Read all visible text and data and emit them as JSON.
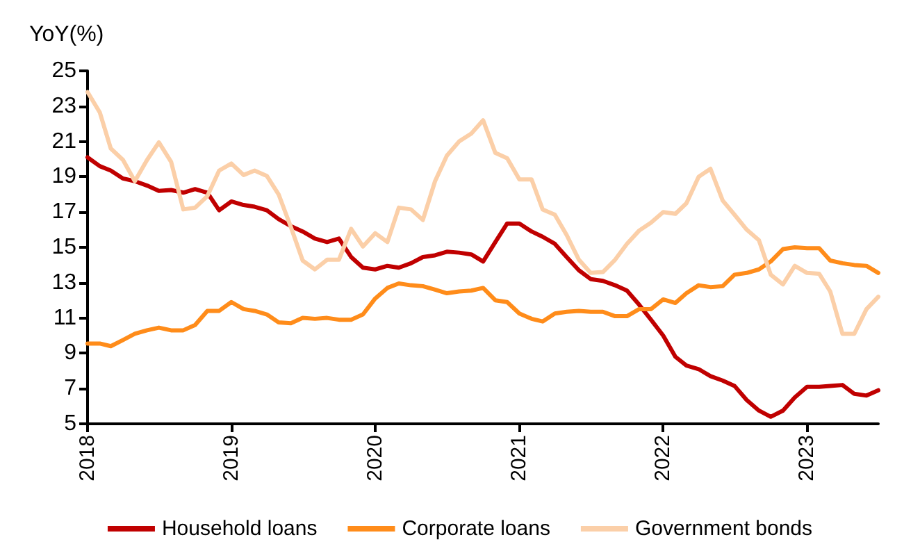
{
  "chart_data": {
    "type": "line",
    "ylabel": "YoY(%)",
    "x": [
      "2018-01",
      "2018-02",
      "2018-03",
      "2018-04",
      "2018-05",
      "2018-06",
      "2018-07",
      "2018-08",
      "2018-09",
      "2018-10",
      "2018-11",
      "2018-12",
      "2019-01",
      "2019-02",
      "2019-03",
      "2019-04",
      "2019-05",
      "2019-06",
      "2019-07",
      "2019-08",
      "2019-09",
      "2019-10",
      "2019-11",
      "2019-12",
      "2020-01",
      "2020-02",
      "2020-03",
      "2020-04",
      "2020-05",
      "2020-06",
      "2020-07",
      "2020-08",
      "2020-09",
      "2020-10",
      "2020-11",
      "2020-12",
      "2021-01",
      "2021-02",
      "2021-03",
      "2021-04",
      "2021-05",
      "2021-06",
      "2021-07",
      "2021-08",
      "2021-09",
      "2021-10",
      "2021-11",
      "2021-12",
      "2022-01",
      "2022-02",
      "2022-03",
      "2022-04",
      "2022-05",
      "2022-06",
      "2022-07",
      "2022-08",
      "2022-09",
      "2022-10",
      "2022-11",
      "2022-12",
      "2023-01",
      "2023-02",
      "2023-03",
      "2023-04",
      "2023-05",
      "2023-06",
      "2023-07"
    ],
    "series": [
      {
        "name": "Household loans",
        "color": "#c00000",
        "values": [
          20.1,
          19.6,
          19.35,
          18.9,
          18.75,
          18.5,
          18.2,
          18.25,
          18.1,
          18.3,
          18.1,
          17.1,
          17.6,
          17.4,
          17.3,
          17.1,
          16.6,
          16.2,
          15.9,
          15.5,
          15.3,
          15.5,
          14.45,
          13.85,
          13.75,
          13.95,
          13.85,
          14.1,
          14.45,
          14.55,
          14.75,
          14.7,
          14.6,
          14.2,
          15.3,
          16.35,
          16.35,
          15.9,
          15.6,
          15.2,
          14.45,
          13.7,
          13.2,
          13.1,
          12.85,
          12.55,
          11.75,
          10.9,
          10.0,
          8.8,
          8.3,
          8.1,
          7.7,
          7.45,
          7.15,
          6.35,
          5.75,
          5.4,
          5.75,
          6.5,
          7.1,
          7.1,
          7.15,
          7.2,
          6.7,
          6.6,
          6.9
        ]
      },
      {
        "name": "Corporate loans",
        "color": "#ff8c1a",
        "values": [
          9.55,
          9.55,
          9.4,
          9.75,
          10.1,
          10.3,
          10.45,
          10.3,
          10.3,
          10.6,
          11.4,
          11.4,
          11.9,
          11.5,
          11.4,
          11.2,
          10.75,
          10.7,
          11.0,
          10.95,
          11.0,
          10.9,
          10.9,
          11.2,
          12.1,
          12.7,
          12.95,
          12.85,
          12.8,
          12.6,
          12.4,
          12.5,
          12.55,
          12.7,
          12.0,
          11.9,
          11.25,
          10.95,
          10.8,
          11.25,
          11.35,
          11.4,
          11.35,
          11.35,
          11.1,
          11.1,
          11.5,
          11.5,
          12.05,
          11.85,
          12.4,
          12.85,
          12.75,
          12.8,
          13.45,
          13.55,
          13.75,
          14.2,
          14.9,
          15.0,
          14.95,
          14.95,
          14.25,
          14.1,
          14.0,
          13.95,
          13.55
        ]
      },
      {
        "name": "Government bonds",
        "color": "#fbcfa8",
        "values": [
          23.8,
          22.65,
          20.6,
          19.95,
          18.75,
          19.95,
          20.95,
          19.85,
          17.15,
          17.25,
          17.9,
          19.35,
          19.75,
          19.1,
          19.35,
          19.05,
          18.0,
          16.15,
          14.25,
          13.75,
          14.3,
          14.3,
          16.05,
          15.05,
          15.8,
          15.3,
          17.25,
          17.15,
          16.55,
          18.75,
          20.2,
          21.0,
          21.45,
          22.2,
          20.35,
          20.05,
          18.85,
          18.85,
          17.15,
          16.85,
          15.7,
          14.3,
          13.55,
          13.6,
          14.3,
          15.2,
          15.95,
          16.4,
          17.0,
          16.9,
          17.5,
          19.0,
          19.45,
          17.65,
          16.85,
          16.0,
          15.4,
          13.45,
          12.9,
          13.95,
          13.55,
          13.5,
          12.5,
          10.1,
          10.1,
          11.5,
          12.2
        ]
      }
    ],
    "xlim": [
      "2018-01",
      "2023-07"
    ],
    "xticks": [
      "2018",
      "2019",
      "2020",
      "2021",
      "2022",
      "2023"
    ],
    "ylim": [
      5,
      25
    ],
    "yticks": [
      5,
      7,
      9,
      11,
      13,
      15,
      17,
      19,
      21,
      23,
      25
    ],
    "grid": false,
    "legend": "bottom",
    "marker": "none",
    "line_style": "solid"
  }
}
